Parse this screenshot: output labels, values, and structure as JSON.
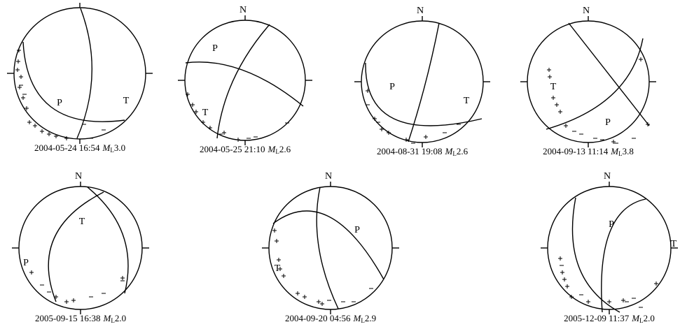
{
  "panels": [
    {
      "north": "N",
      "labels": [
        "P",
        "T"
      ],
      "caption": {
        "time": "2004-05-24 16:54",
        "mag": "M",
        "sub": "L",
        "value": "3.0"
      }
    },
    {
      "north": "N",
      "labels": [
        "P",
        "T"
      ],
      "caption": {
        "time": "2004-05-25 21:10",
        "mag": "M",
        "sub": "L",
        "value": "2.6"
      }
    },
    {
      "north": "N",
      "labels": [
        "P",
        "T"
      ],
      "caption": {
        "time": "2004-08-31 19:08",
        "mag": "M",
        "sub": "L",
        "value": "2.6"
      }
    },
    {
      "north": "N",
      "labels": [
        "P",
        "T"
      ],
      "caption": {
        "time": "2004-09-13 11:14",
        "mag": "M",
        "sub": "L",
        "value": "3.8"
      }
    },
    {
      "north": "N",
      "labels": [
        "P",
        "T"
      ],
      "caption": {
        "time": "2005-09-15 16:38",
        "mag": "M",
        "sub": "L",
        "value": "2.0"
      }
    },
    {
      "north": "N",
      "labels": [
        "P",
        "T"
      ],
      "caption": {
        "time": "2004-09-20 04:56",
        "mag": "M",
        "sub": "L",
        "value": "2.9"
      }
    },
    {
      "north": "N",
      "labels": [
        "P",
        "T"
      ],
      "caption": {
        "time": "2005-12-09 11:37",
        "mag": "M",
        "sub": "L",
        "value": "2.0"
      }
    }
  ]
}
